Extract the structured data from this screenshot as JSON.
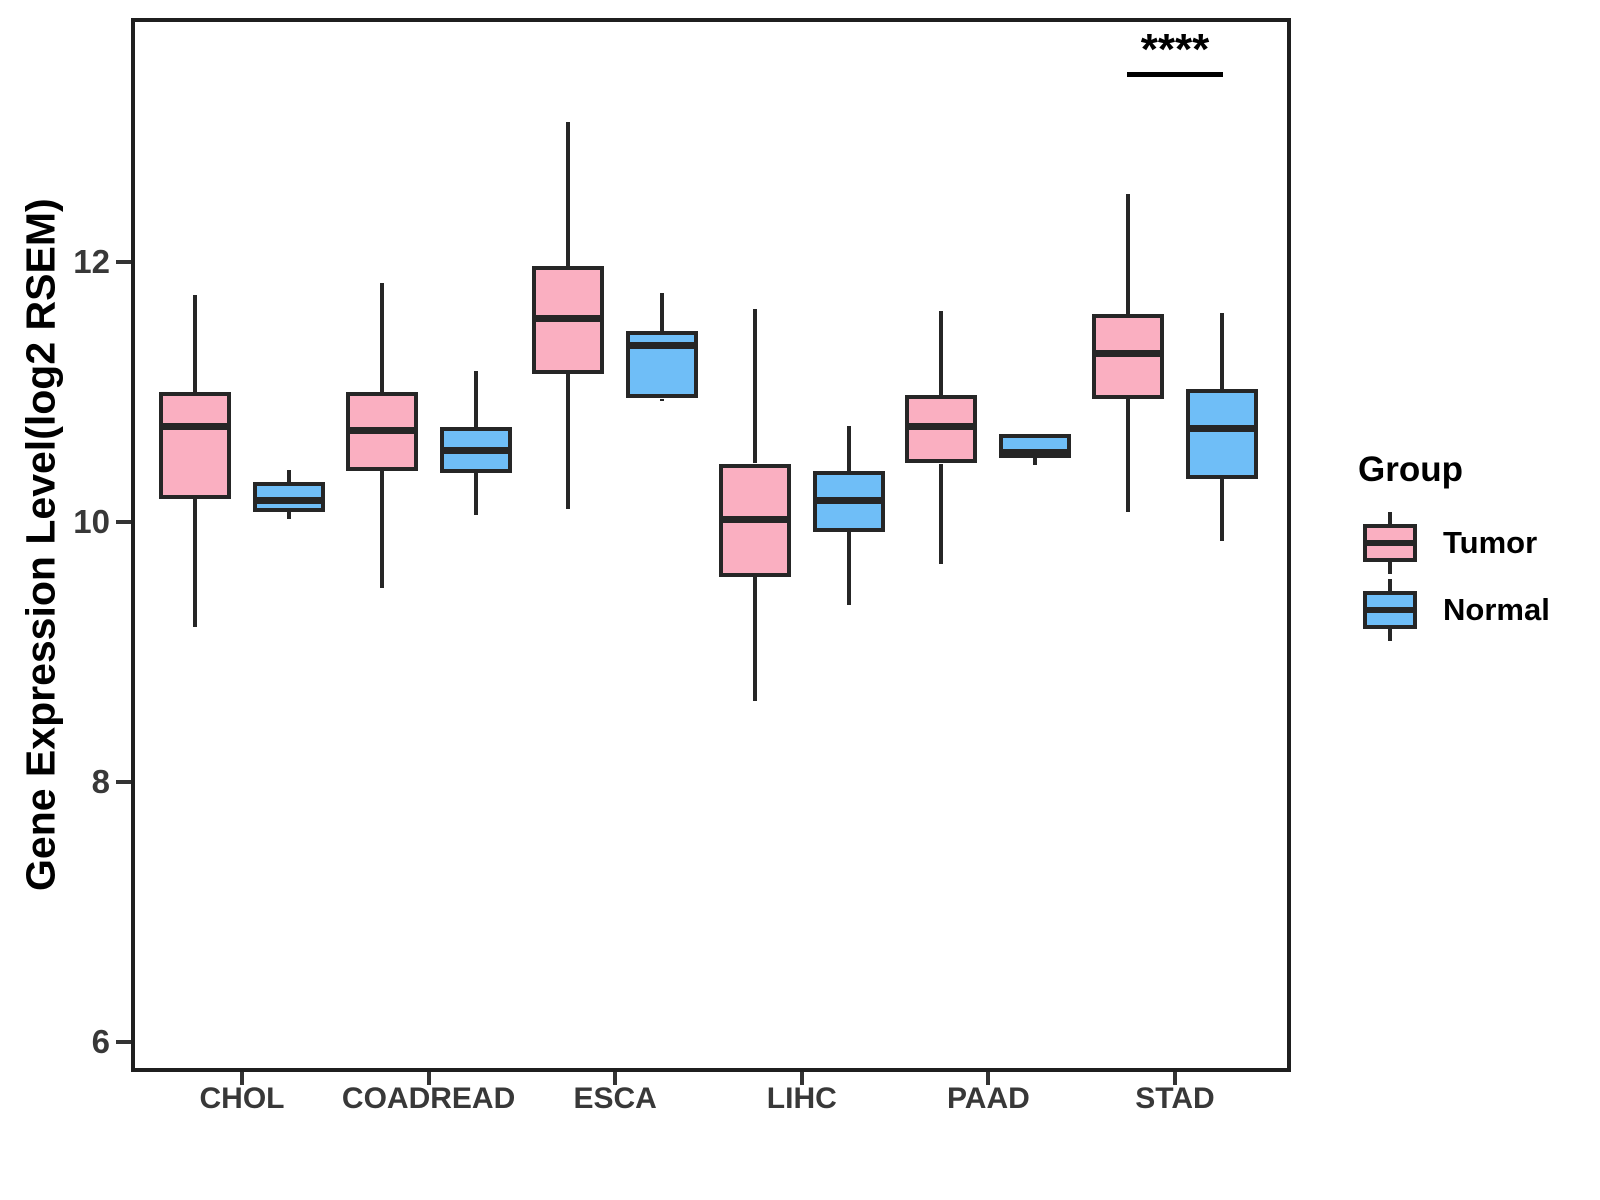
{
  "legend": {
    "title": "Group",
    "items": [
      {
        "label": "Tumor",
        "color": "#FAAFC1"
      },
      {
        "label": "Normal",
        "color": "#6FBEF7"
      }
    ]
  },
  "significance": {
    "label": "****",
    "category": "STAD"
  },
  "colors": {
    "tumor_fill": "#FAAFC1",
    "normal_fill": "#6FBEF7",
    "box_border": "#262626",
    "axis_text": "#383838",
    "panel_border": "#1f1f1f"
  },
  "chart_data": {
    "type": "boxplot",
    "title": "",
    "xlabel": "",
    "ylabel": "Gene Expression Level(log2 RSEM)",
    "categories": [
      "CHOL",
      "COADREAD",
      "ESCA",
      "LIHC",
      "PAAD",
      "STAD"
    ],
    "yticks": [
      6,
      8,
      10,
      12
    ],
    "ylim": [
      5.8,
      13.9
    ],
    "grid": false,
    "legend_position": "right",
    "series": [
      {
        "name": "Tumor",
        "color": "#FAAFC1",
        "boxes": [
          {
            "category": "CHOL",
            "low": 9.19,
            "q1": 10.18,
            "median": 10.74,
            "q3": 11.0,
            "high": 11.75
          },
          {
            "category": "COADREAD",
            "low": 9.49,
            "q1": 10.39,
            "median": 10.71,
            "q3": 11.0,
            "high": 11.84
          },
          {
            "category": "ESCA",
            "low": 10.1,
            "q1": 11.14,
            "median": 11.57,
            "q3": 11.97,
            "high": 13.08
          },
          {
            "category": "LIHC",
            "low": 8.62,
            "q1": 9.58,
            "median": 10.02,
            "q3": 10.45,
            "high": 11.64
          },
          {
            "category": "PAAD",
            "low": 9.68,
            "q1": 10.45,
            "median": 10.74,
            "q3": 10.98,
            "high": 11.62
          },
          {
            "category": "STAD",
            "low": 10.08,
            "q1": 10.95,
            "median": 11.3,
            "q3": 11.6,
            "high": 12.52
          }
        ]
      },
      {
        "name": "Normal",
        "color": "#6FBEF7",
        "boxes": [
          {
            "category": "CHOL",
            "low": 10.02,
            "q1": 10.08,
            "median": 10.17,
            "q3": 10.31,
            "high": 10.4
          },
          {
            "category": "COADREAD",
            "low": 10.05,
            "q1": 10.38,
            "median": 10.55,
            "q3": 10.73,
            "high": 11.16
          },
          {
            "category": "ESCA",
            "low": 10.93,
            "q1": 10.95,
            "median": 11.36,
            "q3": 11.47,
            "high": 11.76
          },
          {
            "category": "LIHC",
            "low": 9.36,
            "q1": 9.92,
            "median": 10.17,
            "q3": 10.39,
            "high": 10.74
          },
          {
            "category": "PAAD",
            "low": 10.44,
            "q1": 10.49,
            "median": 10.54,
            "q3": 10.68,
            "high": 10.68
          },
          {
            "category": "STAD",
            "low": 9.85,
            "q1": 10.33,
            "median": 10.72,
            "q3": 11.02,
            "high": 11.61
          }
        ]
      }
    ],
    "annotations": [
      {
        "type": "significance",
        "text": "****",
        "category": "STAD",
        "underline": true
      }
    ]
  }
}
